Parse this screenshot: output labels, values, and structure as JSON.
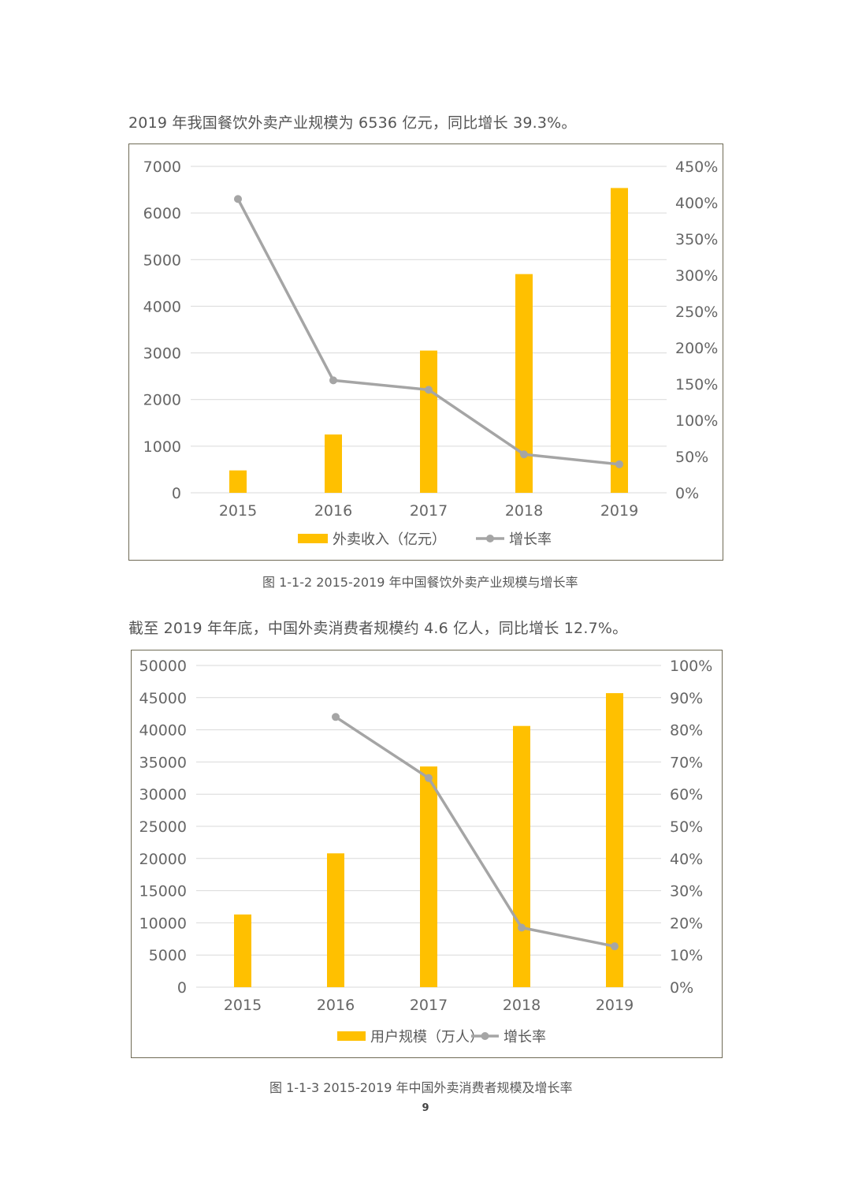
{
  "page": {
    "intro1": "2019 年我国餐饮外卖产业规模为 6536 亿元，同比增长 39.3%。",
    "intro2": "截至 2019 年年底，中国外卖消费者规模约 4.6 亿人，同比增长 12.7%。",
    "caption1": "图 1-1-2 2015-2019 年中国餐饮外卖产业规模与增长率",
    "caption2": "图 1-1-3 2015-2019 年中国外卖消费者规模及增长率",
    "page_number": "9"
  },
  "colors": {
    "bar": "#FFC000",
    "line": "#A5A5A5",
    "grid": "#D9D9D9",
    "border": "#6F6A55"
  },
  "chart_data": [
    {
      "type": "bar+line",
      "title": "",
      "categories": [
        "2015",
        "2016",
        "2017",
        "2018",
        "2019"
      ],
      "series": [
        {
          "name": "外卖收入（亿元）",
          "kind": "bar",
          "axis": "left",
          "values": [
            480,
            1250,
            3050,
            4690,
            6536
          ]
        },
        {
          "name": "增长率",
          "kind": "line",
          "axis": "right",
          "values": [
            405,
            155,
            142,
            53,
            39.3
          ]
        }
      ],
      "y_left": {
        "min": 0,
        "max": 7000,
        "step": 1000,
        "ticks": [
          "0",
          "1000",
          "2000",
          "3000",
          "4000",
          "5000",
          "6000",
          "7000"
        ]
      },
      "y_right": {
        "min": 0,
        "max": 450,
        "step": 50,
        "ticks": [
          "0%",
          "50%",
          "100%",
          "150%",
          "200%",
          "250%",
          "300%",
          "350%",
          "400%",
          "450%"
        ]
      },
      "legend": "bottom",
      "grid": true
    },
    {
      "type": "bar+line",
      "title": "",
      "categories": [
        "2015",
        "2016",
        "2017",
        "2018",
        "2019"
      ],
      "series": [
        {
          "name": "用户规模（万人）",
          "kind": "bar",
          "axis": "left",
          "values": [
            11300,
            20800,
            34300,
            40600,
            45700
          ]
        },
        {
          "name": "增长率",
          "kind": "line",
          "axis": "right",
          "values": [
            null,
            84,
            65,
            18.5,
            12.7
          ]
        }
      ],
      "y_left": {
        "min": 0,
        "max": 50000,
        "step": 5000,
        "ticks": [
          "0",
          "5000",
          "10000",
          "15000",
          "20000",
          "25000",
          "30000",
          "35000",
          "40000",
          "45000",
          "50000"
        ]
      },
      "y_right": {
        "min": 0,
        "max": 100,
        "step": 10,
        "ticks": [
          "0%",
          "10%",
          "20%",
          "30%",
          "40%",
          "50%",
          "60%",
          "70%",
          "80%",
          "90%",
          "100%"
        ]
      },
      "legend": "bottom",
      "grid": true
    }
  ]
}
